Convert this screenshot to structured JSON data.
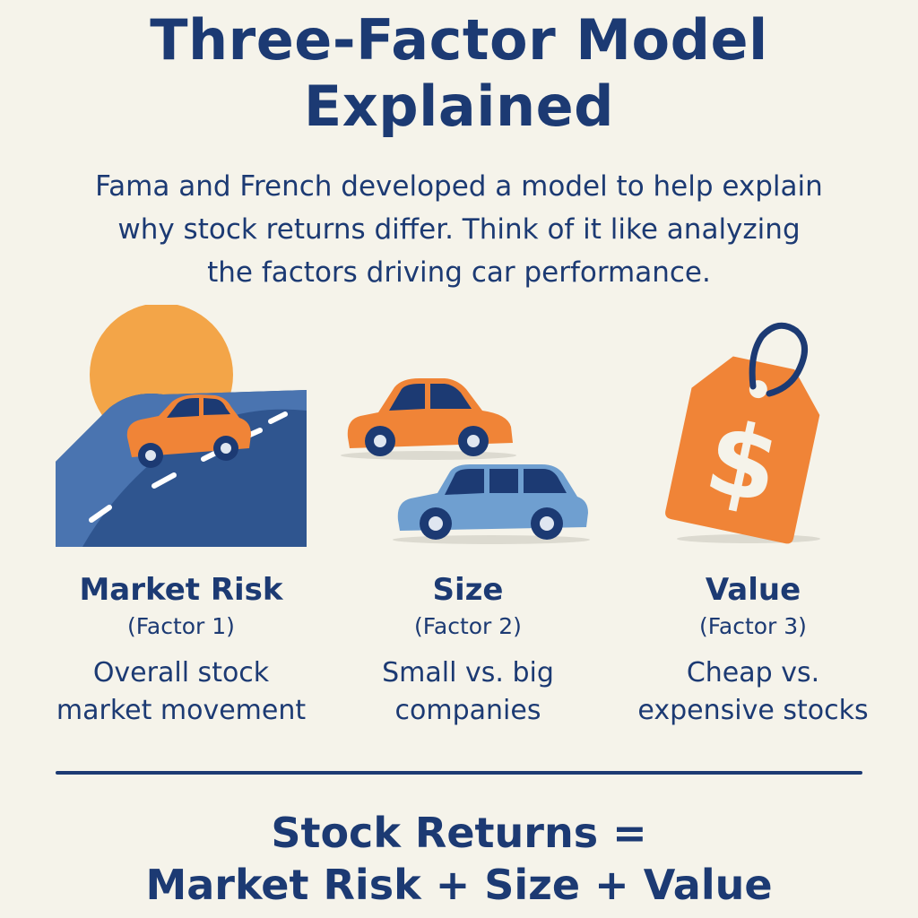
{
  "title": {
    "line1": "Three-Factor Model",
    "line2": "Explained"
  },
  "intro": {
    "line1": "Fama and French developed a model to help explain",
    "line2": "why stock returns differ. Think of it like analyzing",
    "line3": "the factors driving car performance."
  },
  "factors": [
    {
      "name": "Market Risk",
      "number": "(Factor 1)",
      "desc_line1": "Overall stock",
      "desc_line2": "market movement",
      "icon": "car-on-road-icon"
    },
    {
      "name": "Size",
      "number": "(Factor 2)",
      "desc_line1": "Small vs. big",
      "desc_line2": "companies",
      "icon": "two-cars-icon"
    },
    {
      "name": "Value",
      "number": "(Factor 3)",
      "desc_line1": "Cheap vs.",
      "desc_line2": "expensive stocks",
      "icon": "price-tag-icon",
      "tag_symbol": "$"
    }
  ],
  "formula": {
    "line1": "Stock Returns =",
    "line2": "Market Risk + Size + Value"
  },
  "colors": {
    "navy": "#1c3a73",
    "orange": "#f08437",
    "sun": "#f3a548",
    "road": "#3d64a0",
    "light_blue_car": "#6f9fd0",
    "background": "#f5f3ea"
  }
}
